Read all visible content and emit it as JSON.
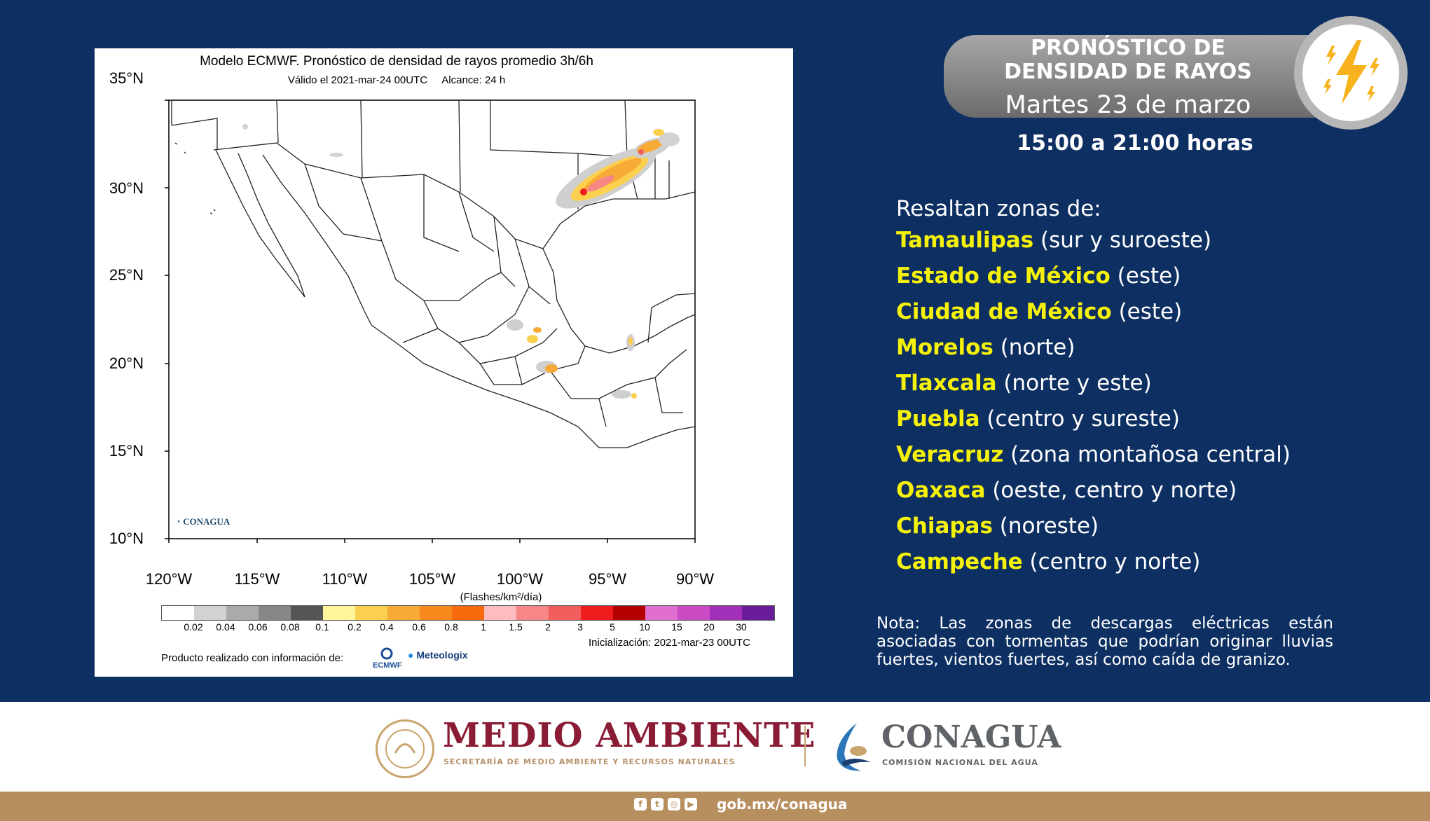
{
  "map": {
    "title": "Modelo ECMWF. Pronóstico de densidad de rayos promedio 3h/6h",
    "valid": "Válido el 2021-mar-24 00UTC",
    "lead": "Alcance: 24 h",
    "lat_labels": [
      "35°N",
      "30°N",
      "25°N",
      "20°N",
      "15°N",
      "10°N"
    ],
    "lon_labels": [
      "120°W",
      "115°W",
      "110°W",
      "105°W",
      "100°W",
      "95°W",
      "90°W"
    ],
    "unit": "(Flashes/km²/día)",
    "colorbar": {
      "ticks": [
        "0.02",
        "0.04",
        "0.06",
        "0.08",
        "0.1",
        "0.2",
        "0.4",
        "0.6",
        "0.8",
        "1",
        "1.5",
        "2",
        "3",
        "5",
        "10",
        "15",
        "20",
        "30"
      ],
      "colors": [
        "#ffffff",
        "#d2d2d2",
        "#aaaaaa",
        "#878787",
        "#555555",
        "#fff59a",
        "#fbd04e",
        "#f8aa36",
        "#f7891d",
        "#f8680d",
        "#fdbdc0",
        "#f78686",
        "#f25e5e",
        "#ee1c1c",
        "#b30000",
        "#e06fcf",
        "#c94ac3",
        "#a22fb8",
        "#6a1d9a"
      ]
    },
    "init": "Inicialización: 2021-mar-23 00UTC",
    "credit": "Producto realizado con información de:",
    "ecmwf_logo": "ECMWF",
    "meteologix_logo": "Meteologix",
    "conagua_watermark": "CONAGUA"
  },
  "banner": {
    "title_line1": "PRONÓSTICO DE",
    "title_line2": "DENSIDAD DE RAYOS",
    "date": "Martes 23 de marzo",
    "hours": "15:00 a 21:00 horas"
  },
  "intro": "Resaltan zonas de:",
  "zones": [
    {
      "state": "Tamaulipas",
      "area": "(sur y suroeste)"
    },
    {
      "state": "Estado de México",
      "area": "(este)"
    },
    {
      "state": "Ciudad de México",
      "area": "(este)"
    },
    {
      "state": "Morelos",
      "area": "(norte)"
    },
    {
      "state": "Tlaxcala",
      "area": "(norte y este)"
    },
    {
      "state": "Puebla",
      "area": "(centro y sureste)"
    },
    {
      "state": "Veracruz",
      "area": "(zona montañosa central)"
    },
    {
      "state": "Oaxaca",
      "area": "(oeste, centro y norte)"
    },
    {
      "state": "Chiapas",
      "area": "(noreste)"
    },
    {
      "state": "Campeche",
      "area": "(centro y norte)"
    }
  ],
  "note": "Nota: Las zonas de descargas eléctricas están asociadas con tormentas que podrían originar lluvias fuertes, vientos fuertes, así como caída de granizo.",
  "footer": {
    "medio_ambiente": "MEDIO AMBIENTE",
    "medio_ambiente_sub": "SECRETARÍA DE MEDIO AMBIENTE Y RECURSOS NATURALES",
    "conagua": "CONAGUA",
    "conagua_sub": "COMISIÓN NACIONAL DEL AGUA",
    "website": "gob.mx/conagua"
  },
  "colors": {
    "background": "#0d2f62",
    "highlight": "#f5f10a",
    "footer_bar": "#b78e5e",
    "brand_wine": "#8a1c35"
  }
}
